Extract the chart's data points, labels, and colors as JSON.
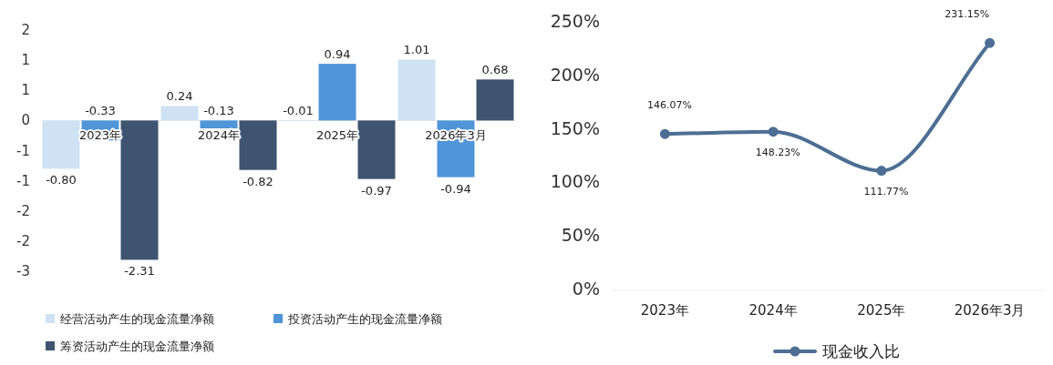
{
  "chart_data": [
    {
      "type": "bar",
      "categories": [
        "2023年",
        "2024年",
        "2025年",
        "2026年3月"
      ],
      "series": [
        {
          "name": "经营活动产生的现金流量净额",
          "color": "#cfe2f3",
          "values": [
            -0.8,
            0.24,
            -0.01,
            1.01
          ],
          "value_labels": [
            "-0.80",
            "0.24",
            "-0.01",
            "1.01"
          ]
        },
        {
          "name": "投资活动产生的现金流量净额",
          "color": "#4f95d8",
          "values": [
            -0.33,
            -0.13,
            0.94,
            -0.94
          ],
          "value_labels": [
            "-0.33",
            "-0.13",
            "0.94",
            "-0.94"
          ]
        },
        {
          "name": "筹资活动产生的现金流量净额",
          "color": "#3e5470",
          "values": [
            -2.31,
            -0.82,
            -0.97,
            0.68
          ],
          "value_labels": [
            "-2.31",
            "-0.82",
            "-0.97",
            "0.68"
          ]
        }
      ],
      "ylim": [
        -2.5,
        1.5
      ],
      "yticks": [
        {
          "value": 1.5,
          "label": "2"
        },
        {
          "value": 1,
          "label": "1"
        },
        {
          "value": 0.5,
          "label": "1"
        },
        0,
        {
          "value": -0.5,
          "label": "-1"
        },
        {
          "value": -1,
          "label": "-1"
        },
        {
          "value": -1.5,
          "label": "-2"
        },
        {
          "value": -2,
          "label": "-2"
        },
        {
          "value": -2.5,
          "label": "-3"
        }
      ],
      "grid": false,
      "legend": "bottom"
    },
    {
      "type": "line",
      "categories": [
        "2023年",
        "2024年",
        "2025年",
        "2026年3月"
      ],
      "series": [
        {
          "name": "现金收入比",
          "color": "#4d6e94",
          "values": [
            146.07,
            148.23,
            111.77,
            231.15
          ],
          "value_labels": [
            "146.07%",
            "148.23%",
            "111.77%",
            "231.15%"
          ]
        }
      ],
      "ylim": [
        0,
        250
      ],
      "yticks": [
        {
          "value": 0,
          "label": "0%"
        },
        {
          "value": 50,
          "label": "50%"
        },
        {
          "value": 100,
          "label": "100%"
        },
        {
          "value": 150,
          "label": "150%"
        },
        {
          "value": 200,
          "label": "200%"
        },
        {
          "value": 250,
          "label": "250%"
        }
      ],
      "marker": "circle",
      "grid": false,
      "legend": "bottom"
    }
  ]
}
